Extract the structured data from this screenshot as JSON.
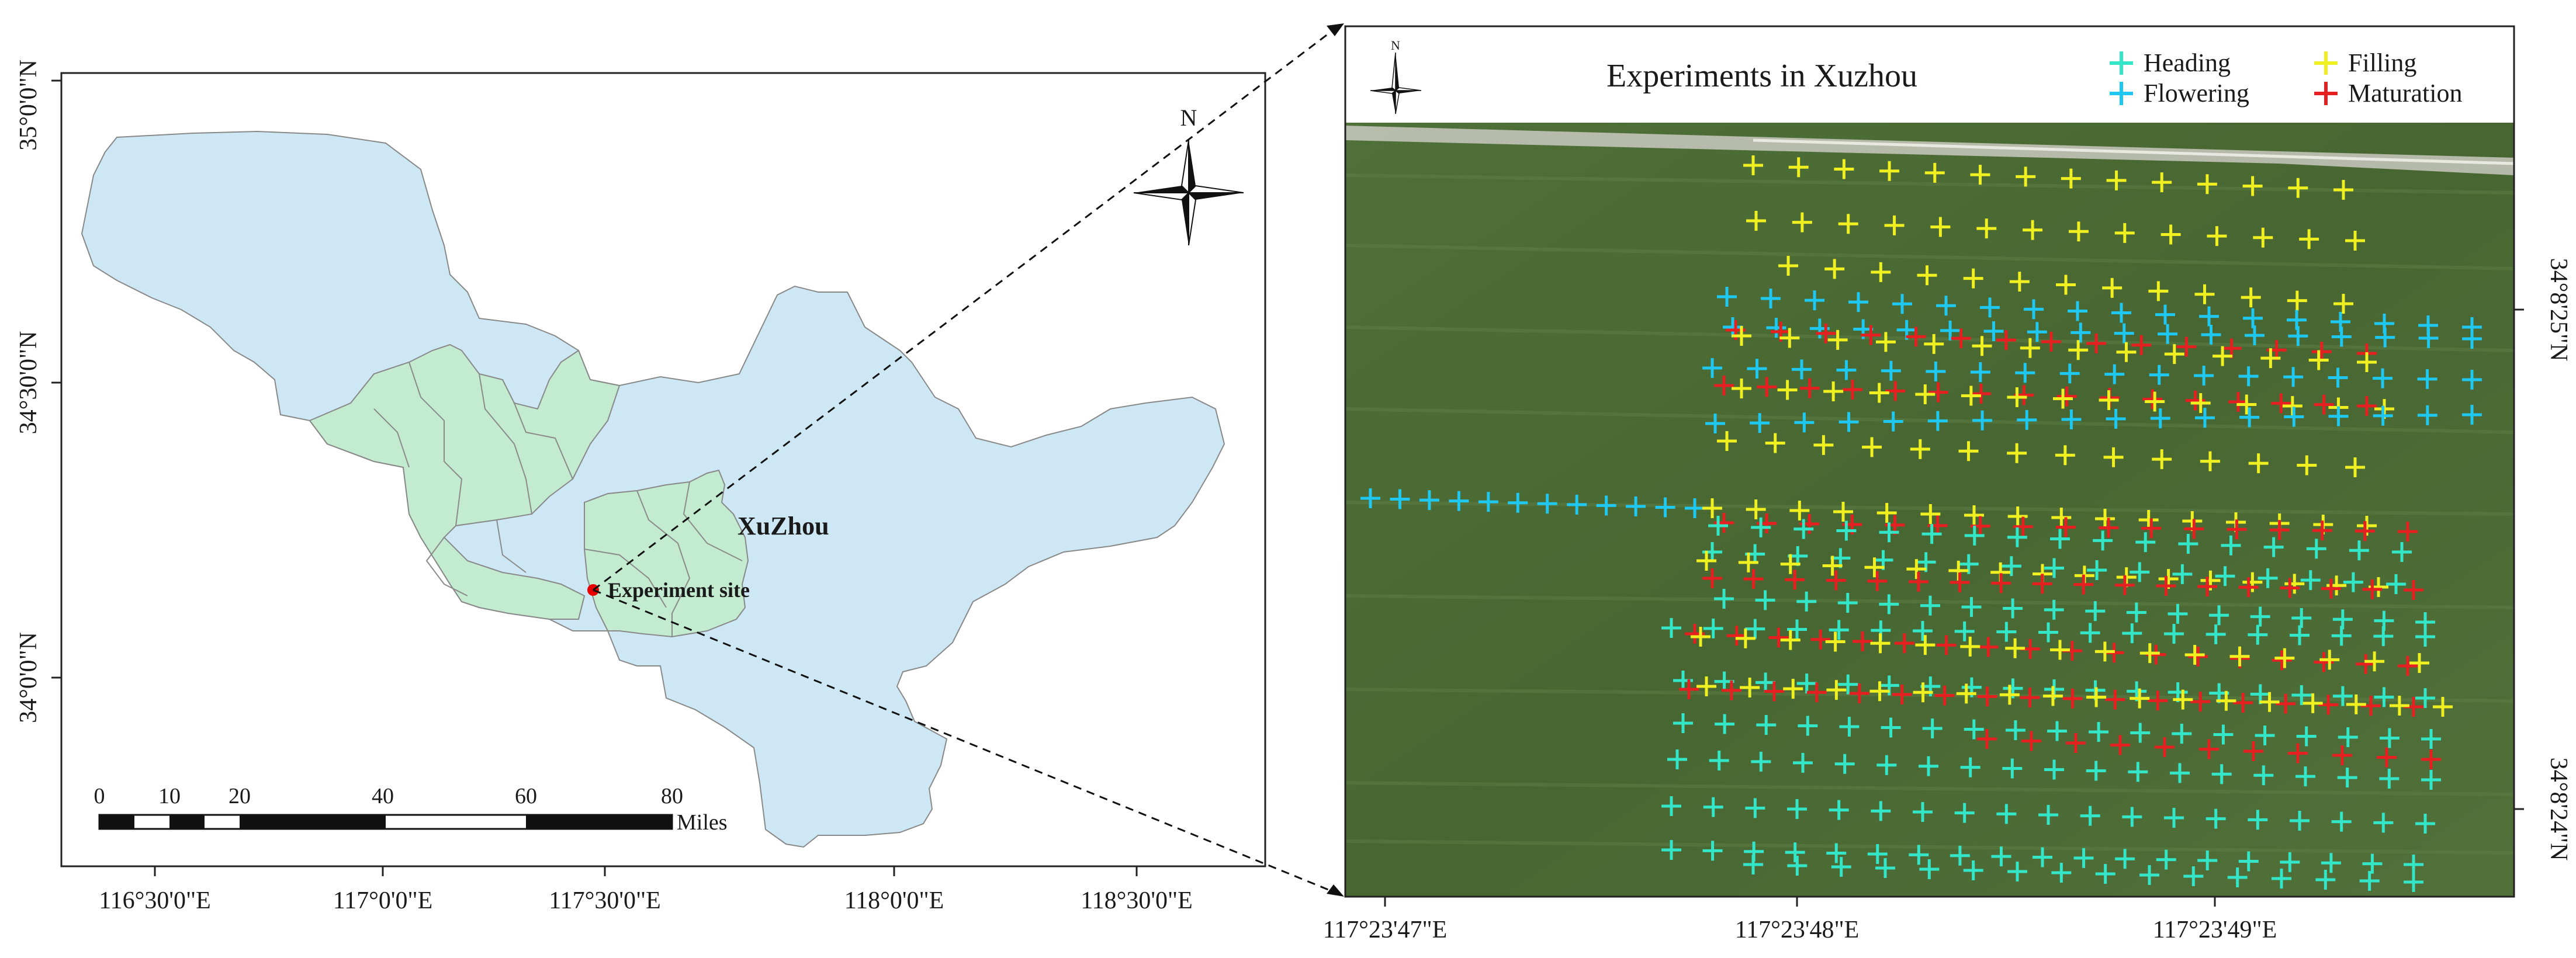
{
  "left_map": {
    "region_label": "XuZhou",
    "site_label": "Experiment site",
    "north_label": "N",
    "x_ticks": [
      "116°30'0\"E",
      "117°0'0\"E",
      "117°30'0\"E",
      "118°0'0\"E",
      "118°30'0\"E"
    ],
    "y_ticks": [
      "35°0'0\"N",
      "34°30'0\"N",
      "34°0'0\"N"
    ],
    "scale_numbers": [
      "0",
      "10",
      "20",
      "40",
      "60",
      "80"
    ],
    "scale_unit": "Miles",
    "colors": {
      "city": "#cde8f4",
      "district": "#c2ebd0",
      "site": "#e60000"
    }
  },
  "right_map": {
    "title": "Experiments in Xuzhou",
    "north_label": "N",
    "x_ticks": [
      "117°23'47\"E",
      "117°23'48\"E",
      "117°23'49\"E"
    ],
    "y_ticks": [
      "34°8'25\"N",
      "34°8'24\"N"
    ],
    "legend": [
      {
        "label": "Heading",
        "color": "#33e6c8"
      },
      {
        "label": "Filling",
        "color": "#f0f020"
      },
      {
        "label": "Flowering",
        "color": "#1ec8f0"
      },
      {
        "label": "Maturation",
        "color": "#e62020"
      }
    ],
    "colors": {
      "field": "#4a6a34",
      "road": "#c9c9bf"
    }
  }
}
